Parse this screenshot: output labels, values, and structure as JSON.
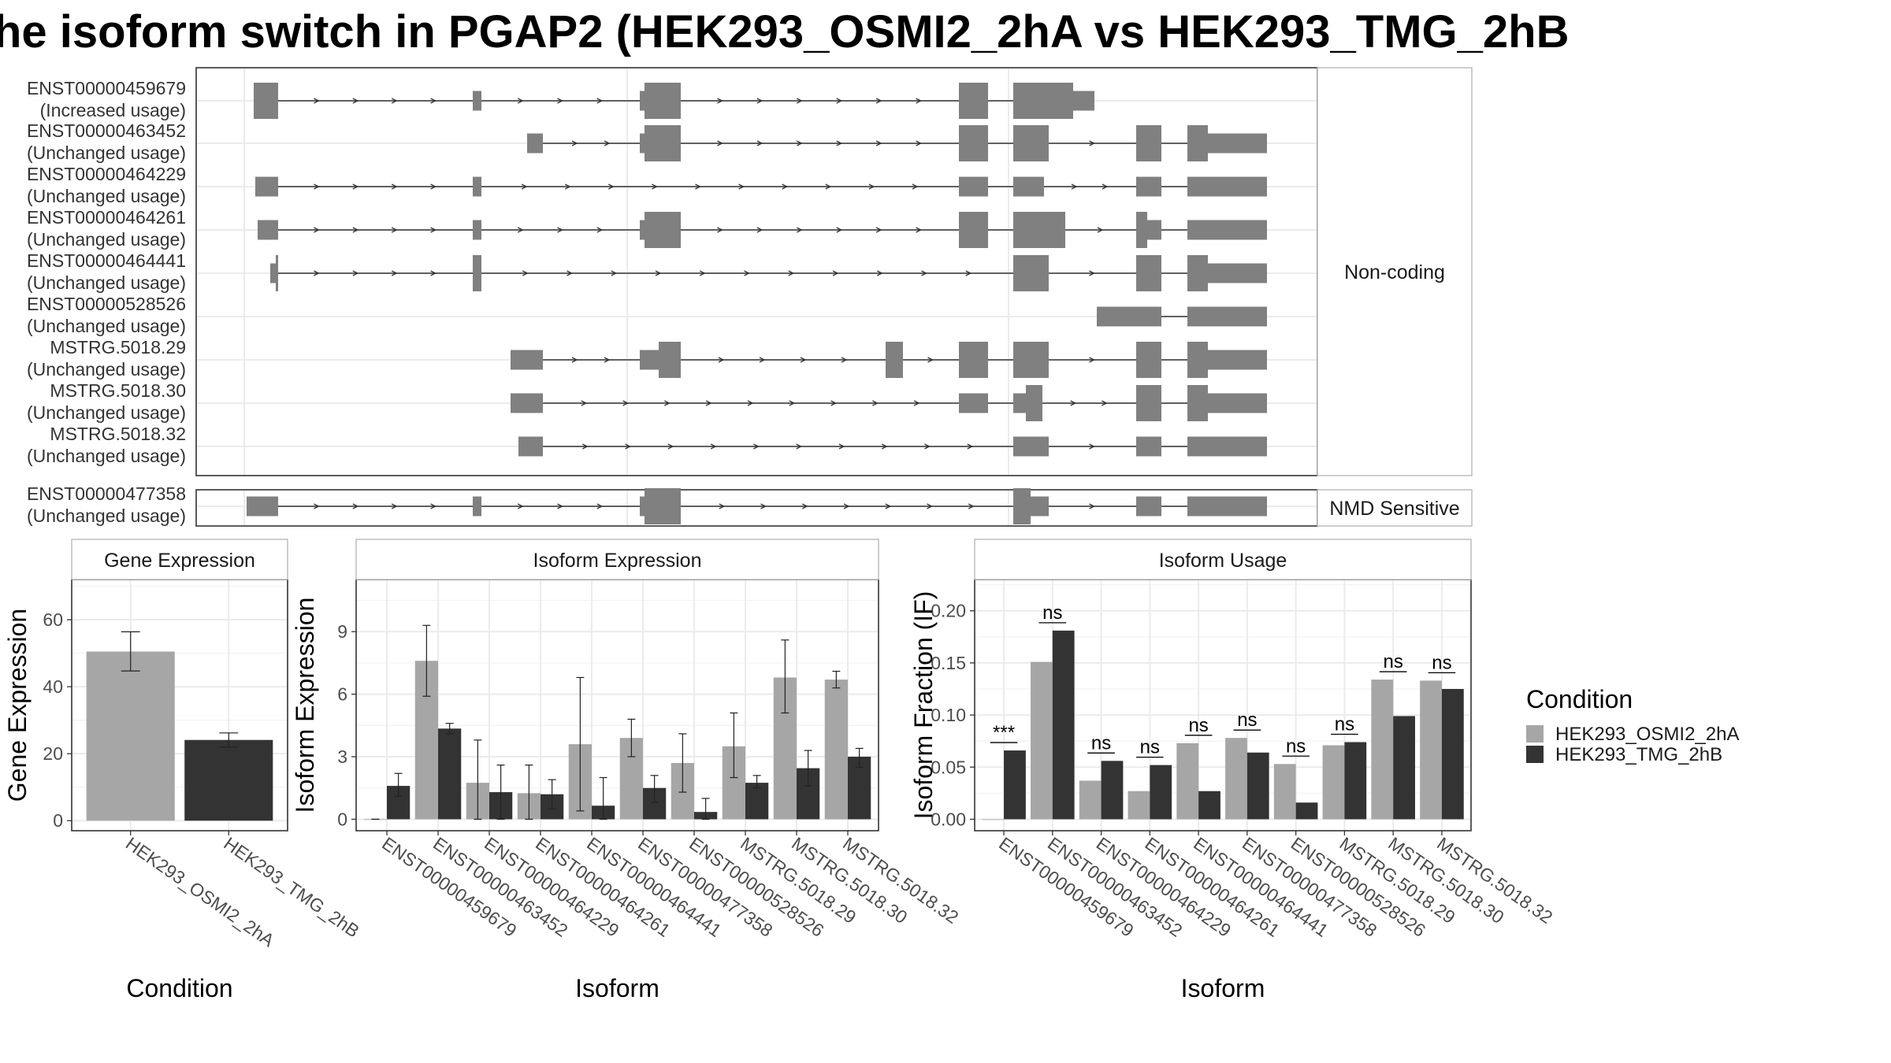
{
  "title": "he isoform switch in PGAP2 (HEK293_OSMI2_2hA vs HEK293_TMG_2hB",
  "colors": {
    "condition_a": "#a6a6a6",
    "condition_b": "#333333",
    "exon": "#808080",
    "grid": "#ebebeb",
    "panel_border": "#333333",
    "strip_bg": "#ffffff"
  },
  "transcript_panel": {
    "groups": [
      {
        "strip": "Non-coding",
        "transcripts": [
          {
            "id": "ENST00000459679",
            "usage": "(Increased usage)"
          },
          {
            "id": "ENST00000463452",
            "usage": "(Unchanged usage)"
          },
          {
            "id": "ENST00000464229",
            "usage": "(Unchanged usage)"
          },
          {
            "id": "ENST00000464261",
            "usage": "(Unchanged usage)"
          },
          {
            "id": "ENST00000464441",
            "usage": "(Unchanged usage)"
          },
          {
            "id": "ENST00000528526",
            "usage": "(Unchanged usage)"
          },
          {
            "id": "MSTRG.5018.29",
            "usage": "(Unchanged usage)"
          },
          {
            "id": "MSTRG.5018.30",
            "usage": "(Unchanged usage)"
          },
          {
            "id": "MSTRG.5018.32",
            "usage": "(Unchanged usage)"
          }
        ]
      },
      {
        "strip": "NMD Sensitive",
        "transcripts": [
          {
            "id": "ENST00000477358",
            "usage": "(Unchanged usage)"
          }
        ]
      }
    ]
  },
  "legend": {
    "title": "Condition",
    "items": [
      "HEK293_OSMI2_2hA",
      "HEK293_TMG_2hB"
    ]
  },
  "chart_data": [
    {
      "type": "bar",
      "strip": "Gene Expression",
      "xlabel": "Condition",
      "ylabel": "Gene Expression",
      "categories": [
        "HEK293_OSMI2_2hA",
        "HEK293_TMG_2hB"
      ],
      "values": [
        50.5,
        24.1
      ],
      "errors": [
        [
          44.7,
          56.4
        ],
        [
          22.0,
          26.2
        ]
      ],
      "yticks": [
        0,
        20,
        40,
        60
      ],
      "ylim": [
        -3,
        72
      ],
      "grid": true
    },
    {
      "type": "bar",
      "strip": "Isoform Expression",
      "xlabel": "Isoform",
      "ylabel": "Isoform Expression",
      "categories": [
        "ENST00000459679",
        "ENST00000463452",
        "ENST00000464229",
        "ENST00000464261",
        "ENST00000464441",
        "ENST00000477358",
        "ENST00000528526",
        "MSTRG.5018.29",
        "MSTRG.5018.30",
        "MSTRG.5018.32"
      ],
      "series": [
        {
          "name": "HEK293_OSMI2_2hA",
          "values": [
            0.0,
            7.6,
            1.75,
            1.25,
            3.6,
            3.9,
            2.7,
            3.5,
            6.8,
            6.7
          ],
          "errors": [
            [
              0.0,
              0.0
            ],
            [
              5.9,
              9.3
            ],
            [
              0.0,
              3.8
            ],
            [
              0.0,
              2.6
            ],
            [
              0.4,
              6.8
            ],
            [
              3.0,
              4.8
            ],
            [
              1.3,
              4.1
            ],
            [
              2.0,
              5.1
            ],
            [
              5.1,
              8.6
            ],
            [
              6.3,
              7.1
            ]
          ]
        },
        {
          "name": "HEK293_TMG_2hB",
          "values": [
            1.6,
            4.35,
            1.3,
            1.2,
            0.65,
            1.5,
            0.35,
            1.75,
            2.45,
            3.0
          ],
          "errors": [
            [
              1.1,
              2.2
            ],
            [
              4.1,
              4.6
            ],
            [
              0.0,
              2.6
            ],
            [
              0.5,
              1.9
            ],
            [
              0.0,
              2.0
            ],
            [
              0.8,
              2.1
            ],
            [
              0.0,
              1.0
            ],
            [
              1.5,
              2.1
            ],
            [
              1.6,
              3.3
            ],
            [
              2.5,
              3.4
            ]
          ]
        }
      ],
      "yticks": [
        0,
        3,
        6,
        9
      ],
      "ylim": [
        -0.55,
        11.5
      ],
      "grid": true
    },
    {
      "type": "bar",
      "strip": "Isoform Usage",
      "xlabel": "Isoform",
      "ylabel": "Isoform Fraction (IF)",
      "categories": [
        "ENST00000459679",
        "ENST00000463452",
        "ENST00000464229",
        "ENST00000464261",
        "ENST00000464441",
        "ENST00000477358",
        "ENST00000528526",
        "MSTRG.5018.29",
        "MSTRG.5018.30",
        "MSTRG.5018.32"
      ],
      "series": [
        {
          "name": "HEK293_OSMI2_2hA",
          "values": [
            0.0,
            0.151,
            0.037,
            0.027,
            0.073,
            0.078,
            0.053,
            0.071,
            0.134,
            0.133
          ]
        },
        {
          "name": "HEK293_TMG_2hB",
          "values": [
            0.066,
            0.181,
            0.056,
            0.052,
            0.027,
            0.064,
            0.016,
            0.074,
            0.099,
            0.125
          ]
        }
      ],
      "significance": [
        "***",
        "ns",
        "ns",
        "ns",
        "ns",
        "ns",
        "ns",
        "ns",
        "ns",
        "ns"
      ],
      "yticks": [
        0.0,
        0.05,
        0.1,
        0.15,
        0.2
      ],
      "ytick_labels": [
        "0.00",
        "0.05",
        "0.10",
        "0.15",
        "0.20"
      ],
      "ylim": [
        -0.011,
        0.23
      ],
      "grid": true
    }
  ]
}
